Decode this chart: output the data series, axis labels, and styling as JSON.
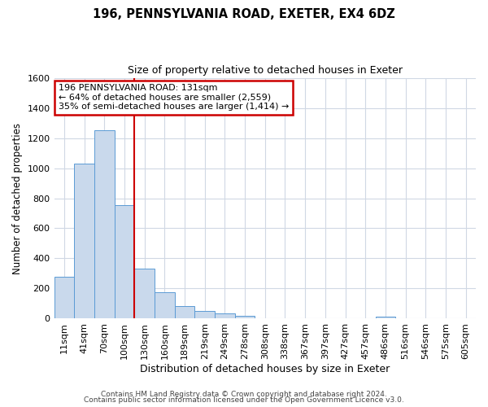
{
  "title": "196, PENNSYLVANIA ROAD, EXETER, EX4 6DZ",
  "subtitle": "Size of property relative to detached houses in Exeter",
  "xlabel": "Distribution of detached houses by size in Exeter",
  "ylabel": "Number of detached properties",
  "bin_labels": [
    "11sqm",
    "41sqm",
    "70sqm",
    "100sqm",
    "130sqm",
    "160sqm",
    "189sqm",
    "219sqm",
    "249sqm",
    "278sqm",
    "308sqm",
    "338sqm",
    "367sqm",
    "397sqm",
    "427sqm",
    "457sqm",
    "486sqm",
    "516sqm",
    "546sqm",
    "575sqm",
    "605sqm"
  ],
  "bar_heights": [
    280,
    1030,
    1250,
    755,
    330,
    175,
    85,
    50,
    35,
    20,
    0,
    0,
    0,
    0,
    0,
    0,
    13,
    0,
    0,
    0,
    0
  ],
  "bar_color": "#c9d9ec",
  "bar_edge_color": "#5b9bd5",
  "vline_color": "#cc0000",
  "vline_x": 3.5,
  "annotation_text": "196 PENNSYLVANIA ROAD: 131sqm\n← 64% of detached houses are smaller (2,559)\n35% of semi-detached houses are larger (1,414) →",
  "annotation_box_color": "#ffffff",
  "annotation_box_edge_color": "#cc0000",
  "ylim": [
    0,
    1600
  ],
  "yticks": [
    0,
    200,
    400,
    600,
    800,
    1000,
    1200,
    1400,
    1600
  ],
  "footer1": "Contains HM Land Registry data © Crown copyright and database right 2024.",
  "footer2": "Contains public sector information licensed under the Open Government Licence v3.0.",
  "background_color": "#ffffff",
  "grid_color": "#d0d8e4",
  "title_fontsize": 10.5,
  "subtitle_fontsize": 9,
  "xlabel_fontsize": 9,
  "ylabel_fontsize": 8.5,
  "tick_fontsize": 8,
  "annotation_fontsize": 8,
  "footer_fontsize": 6.5
}
